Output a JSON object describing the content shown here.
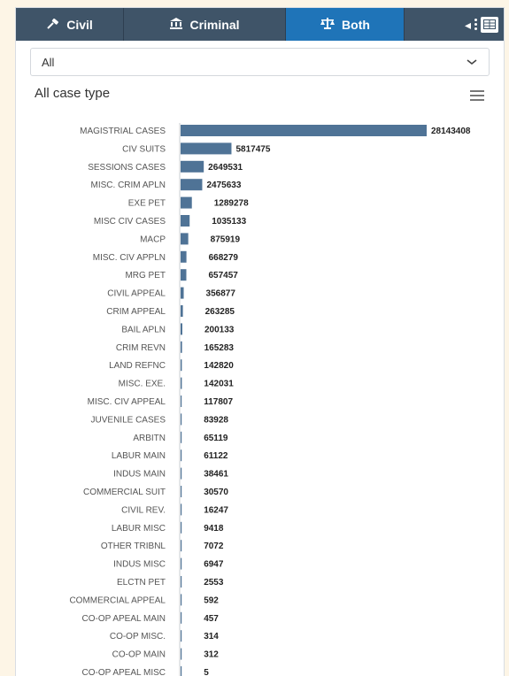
{
  "tabs": [
    {
      "label": "Civil",
      "icon": "gavel-icon"
    },
    {
      "label": "Criminal",
      "icon": "courthouse-icon"
    },
    {
      "label": "Both",
      "icon": "scales-icon",
      "active": true
    }
  ],
  "filter": {
    "selected": "All"
  },
  "chart_title": "All case type",
  "colors": {
    "bar": "#4f7396",
    "active_tab": "#1f74b8",
    "tabbar": "#3f5468"
  },
  "chart_data": {
    "type": "bar",
    "orientation": "horizontal",
    "title": "All case type",
    "categories": [
      "MAGISTRIAL CASES",
      "CIV SUITS",
      "SESSIONS CASES",
      "MISC. CRIM APLN",
      "EXE PET",
      "MISC CIV CASES",
      "MACP",
      "MISC. CIV APPLN",
      "MRG PET",
      "CIVIL APPEAL",
      "CRIM APPEAL",
      "BAIL APLN",
      "CRIM REVN",
      "LAND REFNC",
      "MISC. EXE.",
      "MISC. CIV APPEAL",
      "JUVENILE CASES",
      "ARBITN",
      "LABUR MAIN",
      "INDUS MAIN",
      "COMMERCIAL SUIT",
      "CIVIL REV.",
      "LABUR MISC",
      "OTHER TRIBNL",
      "INDUS MISC",
      "ELCTN PET",
      "COMMERCIAL APPEAL",
      "CO-OP APEAL MAIN",
      "CO-OP MISC.",
      "CO-OP MAIN",
      "CO-OP APEAL MISC"
    ],
    "values": [
      28143408,
      5817475,
      2649531,
      2475633,
      1289278,
      1035133,
      875919,
      668279,
      657457,
      356877,
      263285,
      200133,
      165283,
      142820,
      142031,
      117807,
      83928,
      65119,
      61122,
      38461,
      30570,
      16247,
      9418,
      7072,
      6947,
      2553,
      592,
      457,
      314,
      312,
      5
    ]
  }
}
